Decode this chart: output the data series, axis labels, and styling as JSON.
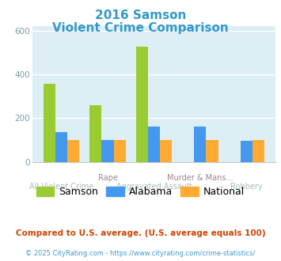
{
  "title_line1": "2016 Samson",
  "title_line2": "Violent Crime Comparison",
  "title_color": "#3399cc",
  "samson": [
    355,
    260,
    525,
    0,
    0
  ],
  "alabama": [
    135,
    100,
    160,
    160,
    95
  ],
  "national": [
    100,
    100,
    100,
    100,
    100
  ],
  "samson_color": "#99cc33",
  "alabama_color": "#4499ee",
  "national_color": "#ffaa33",
  "ylim": [
    0,
    620
  ],
  "yticks": [
    0,
    200,
    400,
    600
  ],
  "plot_bg": "#ddeef5",
  "legend_labels": [
    "Samson",
    "Alabama",
    "National"
  ],
  "label_top": [
    "",
    "Rape",
    "",
    "Murder & Mans...",
    ""
  ],
  "label_bottom": [
    "All Violent Crime",
    "",
    "Aggravated Assault",
    "",
    "Robbery"
  ],
  "footer1": "Compared to U.S. average. (U.S. average equals 100)",
  "footer2": "© 2025 CityRating.com - https://www.cityrating.com/crime-statistics/",
  "footer1_color": "#cc4400",
  "footer2_color": "#4499cc"
}
